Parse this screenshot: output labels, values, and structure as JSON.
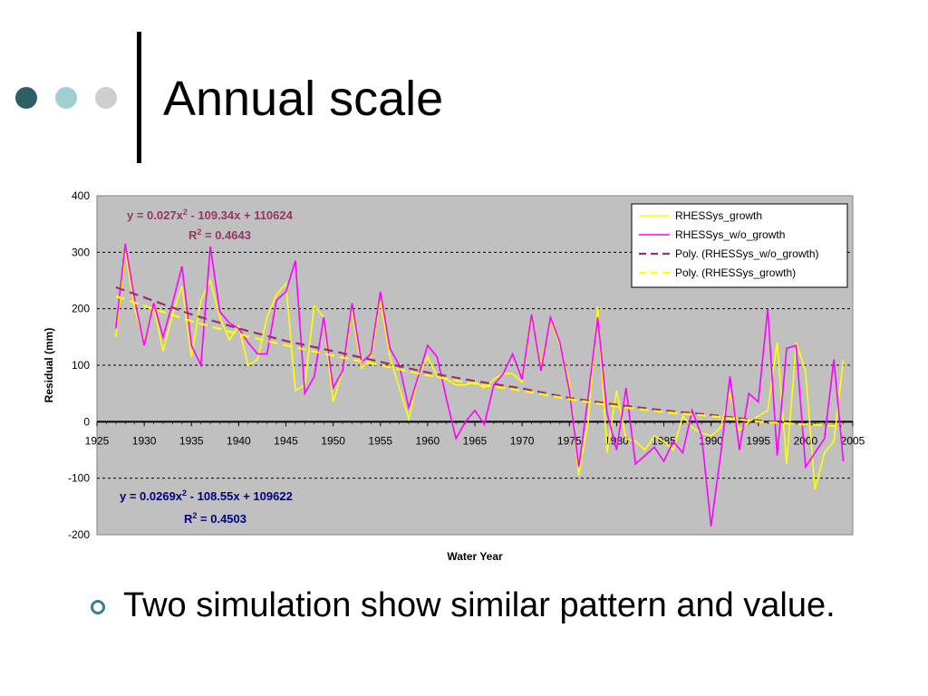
{
  "slide": {
    "title": "Annual scale",
    "bullet": "Two simulation show similar pattern and value.",
    "decor_colors": [
      "#2f5f66",
      "#9fcfd2",
      "#cfcfcf"
    ]
  },
  "chart_data": {
    "type": "line",
    "xlabel": "Water Year",
    "ylabel": "Residual (mm)",
    "xlim": [
      1925,
      2005
    ],
    "ylim": [
      -200,
      400
    ],
    "x_ticks": [
      1925,
      1930,
      1935,
      1940,
      1945,
      1950,
      1955,
      1960,
      1965,
      1970,
      1975,
      1980,
      1985,
      1990,
      1995,
      2000,
      2005
    ],
    "y_ticks": [
      -200,
      -100,
      0,
      100,
      200,
      300,
      400
    ],
    "grid": "horizontal dashed",
    "plot_background": "#c0c0c0",
    "legend_position": "top-right",
    "annotations": [
      {
        "eq": "y = 0.027x",
        "sup": "2",
        "rest": " - 109.34x + 110624",
        "r2_label": "R",
        "r2_sup": "2",
        "r2_rest": " = 0.4643",
        "color": "#993366"
      },
      {
        "eq": "y = 0.0269x",
        "sup": "2",
        "rest": " - 108.55x + 109622",
        "r2_label": "R",
        "r2_sup": "2",
        "r2_rest": " = 0.4503",
        "color": "#000080"
      }
    ],
    "series": [
      {
        "name": "RHESSys_growth",
        "color": "#ffff00",
        "style": "solid",
        "x": [
          1927,
          1928,
          1929,
          1930,
          1931,
          1932,
          1933,
          1934,
          1935,
          1936,
          1937,
          1938,
          1939,
          1940,
          1941,
          1942,
          1943,
          1944,
          1945,
          1946,
          1947,
          1948,
          1949,
          1950,
          1951,
          1952,
          1953,
          1954,
          1955,
          1956,
          1957,
          1958,
          1959,
          1960,
          1961,
          1962,
          1963,
          1964,
          1965,
          1966,
          1967,
          1968,
          1969,
          1970,
          1971,
          1972,
          1973,
          1974,
          1975,
          1976,
          1977,
          1978,
          1979,
          1980,
          1981,
          1982,
          1983,
          1984,
          1985,
          1986,
          1987,
          1988,
          1989,
          1990,
          1991,
          1992,
          1993,
          1994,
          1995,
          1996,
          1997,
          1998,
          1999,
          2000,
          2001,
          2002,
          2003,
          2004
        ],
        "values": [
          150,
          300,
          200,
          140,
          205,
          125,
          190,
          240,
          115,
          215,
          250,
          185,
          145,
          170,
          100,
          110,
          185,
          225,
          245,
          55,
          65,
          205,
          185,
          35,
          90,
          195,
          95,
          110,
          215,
          115,
          60,
          5,
          80,
          115,
          80,
          75,
          65,
          65,
          70,
          60,
          75,
          85,
          85,
          70,
          185,
          100,
          180,
          135,
          70,
          -95,
          0,
          205,
          -55,
          55,
          -30,
          -35,
          -50,
          -25,
          -35,
          -50,
          10,
          -10,
          -20,
          -25,
          -10,
          50,
          -15,
          0,
          10,
          20,
          140,
          -75,
          140,
          90,
          -120,
          -55,
          -35,
          110
        ]
      },
      {
        "name": "RHESSys_w/o_growth",
        "color": "#ff00ff",
        "style": "solid",
        "x": [
          1927,
          1928,
          1929,
          1930,
          1931,
          1932,
          1933,
          1934,
          1935,
          1936,
          1937,
          1938,
          1939,
          1940,
          1941,
          1942,
          1943,
          1944,
          1945,
          1946,
          1947,
          1948,
          1949,
          1950,
          1951,
          1952,
          1953,
          1954,
          1955,
          1956,
          1957,
          1958,
          1959,
          1960,
          1961,
          1962,
          1963,
          1964,
          1965,
          1966,
          1967,
          1968,
          1969,
          1970,
          1971,
          1972,
          1973,
          1974,
          1975,
          1976,
          1977,
          1978,
          1979,
          1980,
          1981,
          1982,
          1983,
          1984,
          1985,
          1986,
          1987,
          1988,
          1989,
          1990,
          1991,
          1992,
          1993,
          1994,
          1995,
          1996,
          1997,
          1998,
          1999,
          2000,
          2001,
          2002,
          2003,
          2004
        ],
        "values": [
          165,
          315,
          215,
          135,
          210,
          150,
          210,
          275,
          135,
          100,
          310,
          195,
          175,
          165,
          140,
          120,
          120,
          215,
          230,
          285,
          50,
          80,
          185,
          60,
          90,
          210,
          105,
          120,
          230,
          130,
          100,
          25,
          80,
          135,
          115,
          40,
          -30,
          0,
          20,
          -5,
          65,
          85,
          120,
          75,
          190,
          90,
          185,
          140,
          55,
          -80,
          45,
          185,
          15,
          -50,
          60,
          -75,
          -60,
          -45,
          -70,
          -35,
          -55,
          20,
          -25,
          -185,
          -60,
          80,
          -50,
          50,
          35,
          200,
          -60,
          130,
          135,
          -80,
          -55,
          -30,
          110,
          -70
        ]
      },
      {
        "name": "Poly. (RHESSys_w/o_growth)",
        "color": "#993366",
        "style": "dashed",
        "x": [
          1927,
          1930,
          1935,
          1940,
          1945,
          1950,
          1955,
          1960,
          1965,
          1970,
          1975,
          1980,
          1985,
          1990,
          1995,
          2000,
          2004
        ],
        "values": [
          238,
          220,
          190,
          165,
          143,
          125,
          106,
          87,
          72,
          59,
          42,
          30,
          20,
          12,
          2,
          -4,
          -8
        ]
      },
      {
        "name": "Poly. (RHESSys_growth)",
        "color": "#ffff00",
        "style": "dashed",
        "x": [
          1927,
          1930,
          1935,
          1940,
          1945,
          1950,
          1955,
          1960,
          1965,
          1970,
          1975,
          1980,
          1985,
          1990,
          1995,
          2000,
          2004
        ],
        "values": [
          222,
          205,
          178,
          155,
          135,
          117,
          100,
          82,
          67,
          55,
          40,
          27,
          17,
          10,
          0,
          -5,
          -8
        ]
      }
    ]
  }
}
